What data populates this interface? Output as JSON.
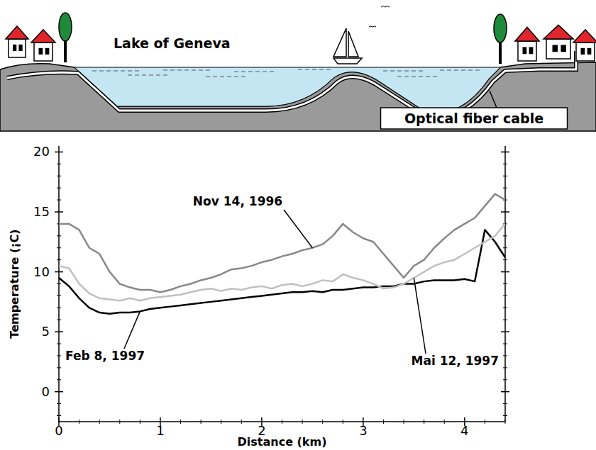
{
  "illustration": {
    "lake_label": "Lake of Geneva",
    "cable_label": "Optical fiber cable"
  },
  "chart_data": {
    "type": "line",
    "x_label": "Distance (km)",
    "y_label": "Temperature (¡C)",
    "x": [
      0,
      0.1,
      0.2,
      0.3,
      0.4,
      0.5,
      0.6,
      0.7,
      0.8,
      0.9,
      1,
      1.1,
      1.2,
      1.3,
      1.4,
      1.5,
      1.6,
      1.7,
      1.8,
      1.9,
      2,
      2.1,
      2.2,
      2.3,
      2.4,
      2.5,
      2.6,
      2.7,
      2.8,
      2.9,
      3,
      3.1,
      3.2,
      3.3,
      3.4,
      3.5,
      3.6,
      3.7,
      3.8,
      3.9,
      4,
      4.1,
      4.2,
      4.3,
      4.4
    ],
    "series": [
      {
        "name": "Nov 14, 1996",
        "color": "#888888",
        "values": [
          14,
          14,
          13.5,
          12,
          11.5,
          10,
          9,
          8.7,
          8.5,
          8.5,
          8.3,
          8.5,
          8.8,
          9,
          9.3,
          9.5,
          9.8,
          10.2,
          10.3,
          10.5,
          10.8,
          11,
          11.3,
          11.5,
          11.8,
          12,
          12.3,
          13,
          14,
          13.3,
          12.8,
          12.5,
          11.5,
          10.5,
          9.5,
          10.5,
          11,
          12,
          12.8,
          13.5,
          14,
          14.5,
          15.5,
          16.5,
          16
        ]
      },
      {
        "name": "Feb 8, 1997",
        "color": "#000000",
        "values": [
          9.5,
          8.8,
          7.8,
          7,
          6.6,
          6.5,
          6.6,
          6.6,
          6.7,
          6.9,
          7,
          7.1,
          7.2,
          7.3,
          7.4,
          7.5,
          7.6,
          7.7,
          7.8,
          7.9,
          8,
          8.1,
          8.2,
          8.3,
          8.3,
          8.4,
          8.3,
          8.5,
          8.5,
          8.6,
          8.7,
          8.7,
          8.8,
          8.8,
          9,
          9,
          9.2,
          9.3,
          9.3,
          9.3,
          9.4,
          9.2,
          13.5,
          12.5,
          11.2
        ]
      },
      {
        "name": "Mai 12, 1997",
        "color": "#c0c0c0",
        "values": [
          10.5,
          10.3,
          9,
          8.2,
          7.8,
          7.7,
          7.6,
          7.8,
          7.6,
          7.8,
          7.9,
          8,
          8.1,
          8.3,
          8.5,
          8.6,
          8.4,
          8.6,
          8.5,
          8.7,
          8.8,
          8.6,
          8.9,
          9,
          8.8,
          9,
          9.3,
          9.2,
          9.8,
          9.5,
          9.3,
          9,
          8.6,
          8.7,
          9,
          9.5,
          10,
          10.5,
          10.8,
          11,
          11.5,
          12,
          12.5,
          13,
          14
        ]
      }
    ],
    "xlim": [
      0,
      4.4
    ],
    "ylim": [
      -2.5,
      20.5
    ],
    "xticks": [
      0,
      1,
      2,
      3,
      4
    ],
    "yticks": [
      0,
      5,
      10,
      15,
      20
    ],
    "grid": false
  }
}
